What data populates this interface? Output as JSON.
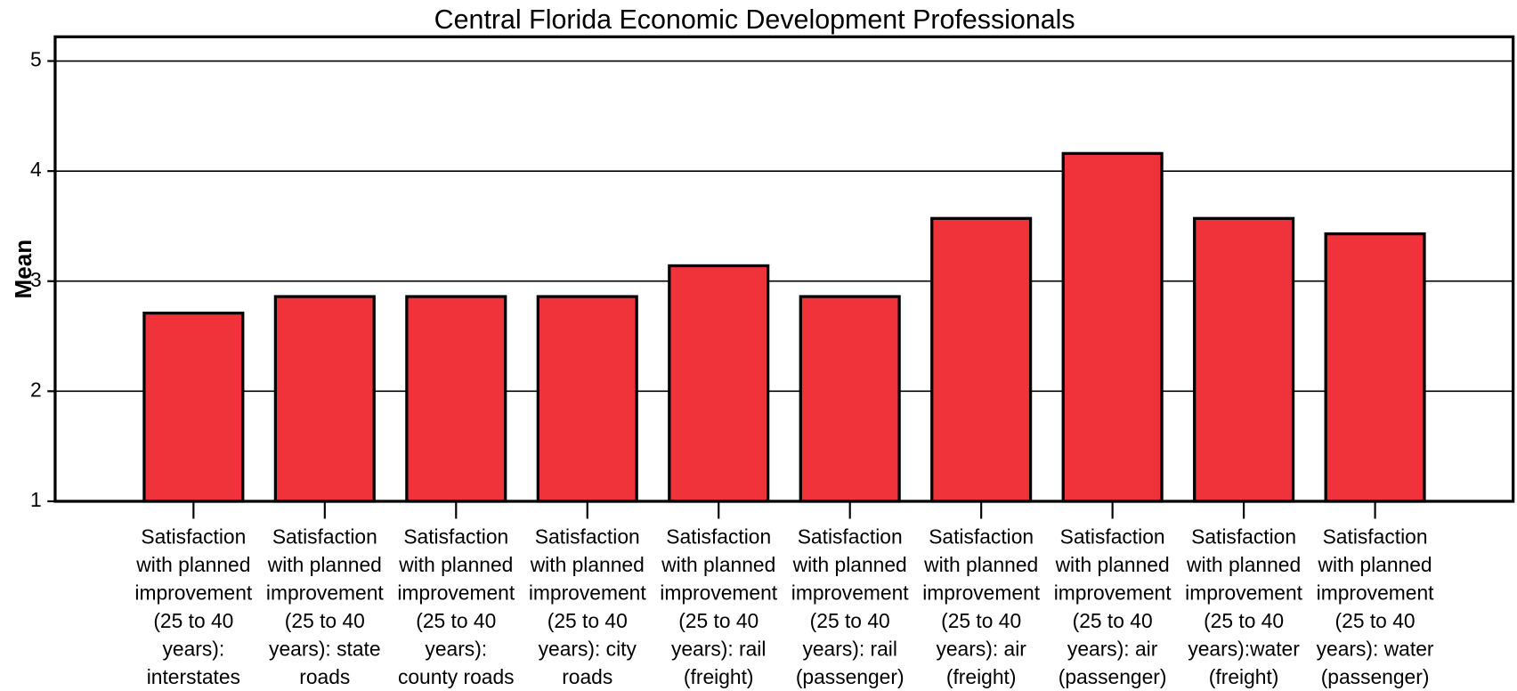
{
  "chart_data": {
    "type": "bar",
    "title": "Central Florida Economic Development Professionals",
    "y_label": "Mean",
    "categories": [
      "Satisfaction with planned improvement (25 to 40 years): interstates",
      "Satisfaction with planned improvement (25 to 40 years): state roads",
      "Satisfaction with planned improvement (25 to 40 years): county roads",
      "Satisfaction with planned improvement (25 to 40 years): city roads",
      "Satisfaction with planned improvement (25 to 40 years): rail (freight)",
      "Satisfaction with planned improvement (25 to 40 years): rail (passenger)",
      "Satisfaction with planned improvement (25 to 40 years): air (freight)",
      "Satisfaction with planned improvement (25 to 40 years): air (passenger)",
      "Satisfaction with planned improvement (25 to 40 years):water (freight)",
      "Satisfaction with planned improvement (25 to 40 years): water (passenger)"
    ],
    "values": [
      2.71,
      2.86,
      2.86,
      2.86,
      3.14,
      2.86,
      3.57,
      4.16,
      3.57,
      3.43
    ],
    "color": "#f0323a",
    "ylim": [
      1,
      5.22
    ],
    "yticks": [
      1,
      2,
      3,
      4,
      5
    ],
    "grid": true
  }
}
